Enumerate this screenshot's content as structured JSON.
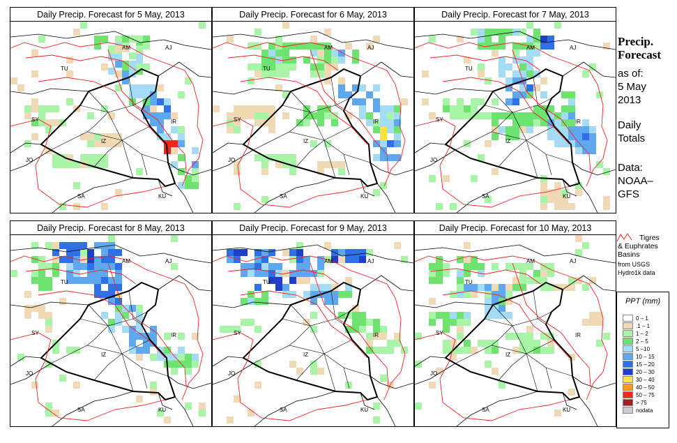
{
  "panels": [
    {
      "title": "Daily Precip. Forecast for  5 May, 2013",
      "date": "5 May"
    },
    {
      "title": "Daily Precip. Forecast for  6 May, 2013",
      "date": "6 May"
    },
    {
      "title": "Daily Precip. Forecast for  7 May, 2013",
      "date": "7 May"
    },
    {
      "title": "Daily Precip. Forecast for  8 May, 2013",
      "date": "8 May"
    },
    {
      "title": "Daily Precip. Forecast for  9 May, 2013",
      "date": "9 May"
    },
    {
      "title": "Daily Precip. Forecast for  10 May, 2013",
      "date": "10 May"
    }
  ],
  "country_labels": [
    "AM",
    "AJ",
    "TU",
    "SY",
    "IR",
    "JO",
    "SA",
    "KU",
    "IZ"
  ],
  "sidebar": {
    "title_line1": "Precip.",
    "title_line2": "Forecast",
    "asof": "as of:",
    "date1": "5 May",
    "date2": "2013",
    "daily1": "Daily",
    "daily2": "Totals",
    "data1": "Data:",
    "data2": "NOAA–",
    "data3": "GFS",
    "basin1": "Tigres",
    "basin2": "& Euphrates",
    "basin3": "Basins",
    "basin4": "from USGS",
    "basin5": "Hydro1k data"
  },
  "legend": {
    "title": "PPT (mm)",
    "items": [
      {
        "label": "0 – 1",
        "color": "#ffffff"
      },
      {
        "label": ".1 – 1",
        "color": "#f0d9b5"
      },
      {
        "label": "1 – 2",
        "color": "#a8f5a8"
      },
      {
        "label": "2 – 5",
        "color": "#6fe36f"
      },
      {
        "label": "5 –10",
        "color": "#a5dcf5"
      },
      {
        "label": "10 – 15",
        "color": "#5fa8f0"
      },
      {
        "label": "15 – 20",
        "color": "#2f6fe8"
      },
      {
        "label": "20 – 30",
        "color": "#1f3fc8"
      },
      {
        "label": "30 – 40",
        "color": "#ffe04a"
      },
      {
        "label": "40 – 50",
        "color": "#ff9a1f"
      },
      {
        "label": "50 – 75",
        "color": "#ee2a1a"
      },
      {
        "label": "> 75",
        "color": "#9a2222"
      },
      {
        "label": "nodata",
        "color": "#cccccc"
      }
    ]
  }
}
